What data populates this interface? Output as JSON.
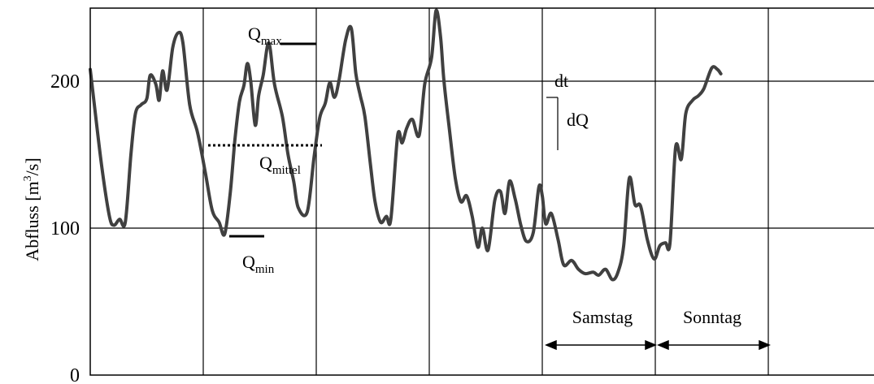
{
  "chart_data": {
    "type": "line",
    "title": "",
    "xlabel": "",
    "ylabel": "Abfluss [m³/s]",
    "ylabel_parts": {
      "base": "Abfluss [m",
      "sup": "3",
      "tail": "/s]"
    },
    "yticks": [
      "0",
      "100",
      "200"
    ],
    "ylim": [
      0,
      250
    ],
    "xlim": [
      0,
      7
    ],
    "grid": true,
    "x_unit": "days",
    "series": [
      {
        "values": [
          [
            0.0,
            208
          ],
          [
            0.03,
            188
          ],
          [
            0.1,
            143
          ],
          [
            0.17,
            108
          ],
          [
            0.21,
            102
          ],
          [
            0.26,
            106
          ],
          [
            0.31,
            104
          ],
          [
            0.36,
            150
          ],
          [
            0.4,
            178
          ],
          [
            0.45,
            184
          ],
          [
            0.5,
            188
          ],
          [
            0.53,
            204
          ],
          [
            0.58,
            198
          ],
          [
            0.61,
            187
          ],
          [
            0.64,
            207
          ],
          [
            0.68,
            194
          ],
          [
            0.73,
            223
          ],
          [
            0.78,
            233
          ],
          [
            0.82,
            226
          ],
          [
            0.88,
            184
          ],
          [
            0.95,
            165
          ],
          [
            1.02,
            137
          ],
          [
            1.08,
            112
          ],
          [
            1.14,
            104
          ],
          [
            1.19,
            96
          ],
          [
            1.24,
            125
          ],
          [
            1.28,
            160
          ],
          [
            1.32,
            186
          ],
          [
            1.36,
            197
          ],
          [
            1.39,
            212
          ],
          [
            1.42,
            200
          ],
          [
            1.46,
            170
          ],
          [
            1.49,
            190
          ],
          [
            1.53,
            204
          ],
          [
            1.58,
            226
          ],
          [
            1.63,
            198
          ],
          [
            1.7,
            176
          ],
          [
            1.75,
            150
          ],
          [
            1.8,
            132
          ],
          [
            1.84,
            114
          ],
          [
            1.92,
            111
          ],
          [
            1.98,
            148
          ],
          [
            2.03,
            175
          ],
          [
            2.08,
            185
          ],
          [
            2.12,
            199
          ],
          [
            2.16,
            189
          ],
          [
            2.2,
            200
          ],
          [
            2.26,
            228
          ],
          [
            2.31,
            236
          ],
          [
            2.35,
            205
          ],
          [
            2.39,
            190
          ],
          [
            2.43,
            176
          ],
          [
            2.48,
            143
          ],
          [
            2.52,
            118
          ],
          [
            2.57,
            104
          ],
          [
            2.62,
            108
          ],
          [
            2.66,
            106
          ],
          [
            2.72,
            163
          ],
          [
            2.76,
            158
          ],
          [
            2.8,
            168
          ],
          [
            2.85,
            174
          ],
          [
            2.91,
            163
          ],
          [
            2.96,
            198
          ],
          [
            3.02,
            216
          ],
          [
            3.06,
            248
          ],
          [
            3.1,
            230
          ],
          [
            3.13,
            200
          ],
          [
            3.18,
            166
          ],
          [
            3.23,
            134
          ],
          [
            3.28,
            118
          ],
          [
            3.33,
            122
          ],
          [
            3.38,
            108
          ],
          [
            3.43,
            87
          ],
          [
            3.47,
            100
          ],
          [
            3.52,
            85
          ],
          [
            3.58,
            119
          ],
          [
            3.63,
            125
          ],
          [
            3.67,
            110
          ],
          [
            3.71,
            132
          ],
          [
            3.76,
            120
          ],
          [
            3.81,
            102
          ],
          [
            3.86,
            91
          ],
          [
            3.92,
            97
          ],
          [
            3.97,
            128
          ],
          [
            4.0,
            122
          ],
          [
            4.03,
            103
          ],
          [
            4.08,
            110
          ],
          [
            4.14,
            92
          ],
          [
            4.19,
            75
          ],
          [
            4.26,
            78
          ],
          [
            4.32,
            72
          ],
          [
            4.38,
            69
          ],
          [
            4.45,
            70
          ],
          [
            4.5,
            68
          ],
          [
            4.56,
            72
          ],
          [
            4.62,
            65
          ],
          [
            4.67,
            70
          ],
          [
            4.72,
            88
          ],
          [
            4.77,
            134
          ],
          [
            4.82,
            116
          ],
          [
            4.87,
            115
          ],
          [
            4.93,
            92
          ],
          [
            4.99,
            79
          ],
          [
            5.04,
            88
          ],
          [
            5.09,
            90
          ],
          [
            5.13,
            90
          ],
          [
            5.18,
            155
          ],
          [
            5.23,
            147
          ],
          [
            5.27,
            178
          ],
          [
            5.33,
            187
          ],
          [
            5.38,
            190
          ],
          [
            5.43,
            195
          ],
          [
            5.5,
            209
          ],
          [
            5.55,
            208
          ],
          [
            5.58,
            205
          ]
        ]
      }
    ],
    "annotations": [
      {
        "base": "Q",
        "sub": "max"
      },
      {
        "base": "Q",
        "sub": "mittel"
      },
      {
        "base": "Q",
        "sub": "min"
      },
      {
        "text": "dt"
      },
      {
        "text": "dQ"
      },
      {
        "text": "Samstag"
      },
      {
        "text": "Sonntag"
      }
    ]
  }
}
